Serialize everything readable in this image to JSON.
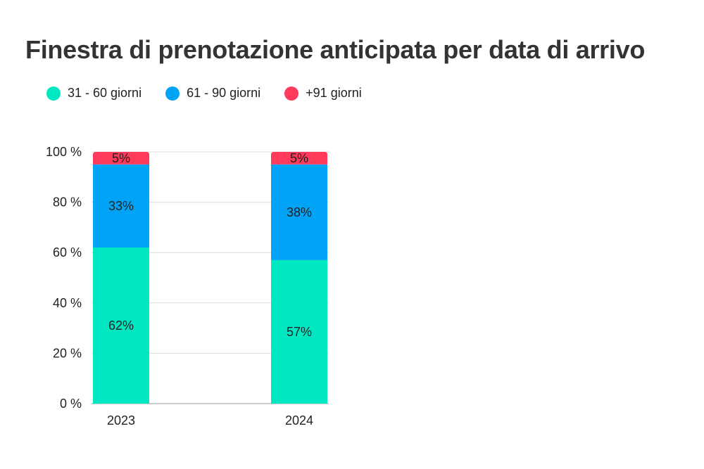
{
  "title": "Finestra di prenotazione anticipata per data di arrivo",
  "chart_data": {
    "type": "bar",
    "stacked": true,
    "categories": [
      "2023",
      "2024"
    ],
    "series": [
      {
        "name": "31 - 60 giorni",
        "color": "#00E8C2",
        "values": [
          62,
          57
        ],
        "labels": [
          "62%",
          "57%"
        ]
      },
      {
        "name": "61 - 90 giorni",
        "color": "#00A3F5",
        "values": [
          33,
          38
        ],
        "labels": [
          "33%",
          "38%"
        ]
      },
      {
        "name": "+91 giorni",
        "color": "#FF3A5B",
        "values": [
          5,
          5
        ],
        "labels": [
          "5%",
          "5%"
        ]
      }
    ],
    "ylim": [
      0,
      100
    ],
    "yticks": [
      "0 %",
      "20 %",
      "40 %",
      "60 %",
      "80 %",
      "100 %"
    ],
    "grid": true,
    "legend": "top-left"
  }
}
